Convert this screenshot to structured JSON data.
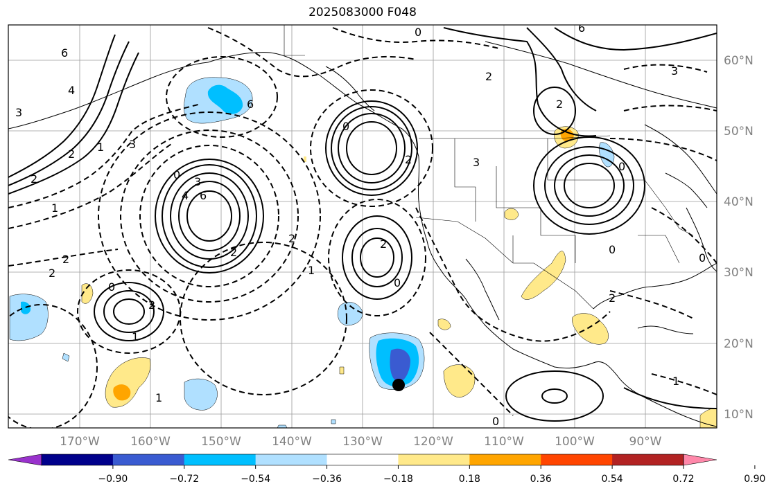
{
  "title": "2025083000 F048",
  "lat_labels": [
    "60°N",
    "50°N",
    "40°N",
    "30°N",
    "20°N",
    "10°N"
  ],
  "lon_labels": [
    "170°W",
    "160°W",
    "150°W",
    "140°W",
    "130°W",
    "120°W",
    "110°W",
    "100°W",
    "90°W"
  ],
  "colorbar": {
    "ticks": [
      "−0.90",
      "−0.72",
      "−0.54",
      "−0.36",
      "−0.18",
      "0.18",
      "0.36",
      "0.54",
      "0.72",
      "0.90"
    ],
    "colors": [
      "#9932cc",
      "#00008b",
      "#3a5bd1",
      "#00bfff",
      "#b0e0ff",
      "#ffffff",
      "#ffe98a",
      "#ffa500",
      "#ff4500",
      "#b22222",
      "#ff88aa"
    ]
  },
  "contour_labels": [
    "0",
    "6",
    "4",
    "3",
    "2",
    "1",
    "6",
    "2",
    "3",
    "0",
    "4",
    "3",
    "6",
    "2",
    "2",
    "2",
    "1",
    "2",
    "0",
    "2",
    "1",
    "0",
    "2",
    "1",
    "2",
    "0",
    "3",
    "6",
    "2",
    "0",
    "3",
    "0",
    "2",
    "1",
    "0",
    "2",
    "1",
    "0"
  ],
  "colors": {
    "grid": "#9a9a9a",
    "contour": "#000000",
    "label": "#808080"
  }
}
